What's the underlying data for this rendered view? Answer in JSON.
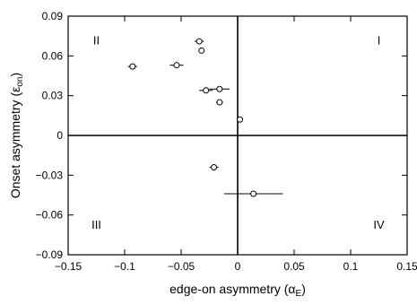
{
  "chart_data": {
    "type": "scatter",
    "xlabel": "edge-on asymmetry  (α",
    "xlabel_sub": "E",
    "ylabel": "Onset asymmetry (ε",
    "ylabel_sub": "on",
    "xlim": [
      -0.15,
      0.15
    ],
    "ylim": [
      -0.09,
      0.09
    ],
    "x_ticks": [
      {
        "value": -0.15,
        "label": "−0.15"
      },
      {
        "value": -0.1,
        "label": "−0.1"
      },
      {
        "value": -0.05,
        "label": "−0.05"
      },
      {
        "value": 0,
        "label": "0"
      },
      {
        "value": 0.05,
        "label": "0.05"
      },
      {
        "value": 0.1,
        "label": "0.1"
      },
      {
        "value": 0.15,
        "label": "0.15"
      }
    ],
    "y_ticks": [
      {
        "value": -0.09,
        "label": "−0.09"
      },
      {
        "value": -0.06,
        "label": "−0.06"
      },
      {
        "value": -0.03,
        "label": "−0.03"
      },
      {
        "value": 0,
        "label": "0"
      },
      {
        "value": 0.03,
        "label": "0.03"
      },
      {
        "value": 0.06,
        "label": "0.06"
      },
      {
        "value": 0.09,
        "label": "0.09"
      }
    ],
    "quadrant_labels": [
      {
        "text": "II",
        "at": [
          -0.125,
          0.072
        ]
      },
      {
        "text": "I",
        "at": [
          0.125,
          0.072
        ]
      },
      {
        "text": "III",
        "at": [
          -0.125,
          -0.067
        ]
      },
      {
        "text": "IV",
        "at": [
          0.125,
          -0.067
        ]
      }
    ],
    "zero_lines": true,
    "grid": false,
    "points": [
      {
        "x": -0.093,
        "y": 0.052,
        "xerr": 0.004
      },
      {
        "x": -0.054,
        "y": 0.053,
        "xerr": 0.006
      },
      {
        "x": -0.034,
        "y": 0.071,
        "xerr": 0.004
      },
      {
        "x": -0.032,
        "y": 0.064,
        "xerr": 0.0
      },
      {
        "x": -0.028,
        "y": 0.034,
        "xerr": 0.006
      },
      {
        "x": -0.016,
        "y": 0.035,
        "xerr": 0.009
      },
      {
        "x": -0.016,
        "y": 0.025,
        "xerr": 0.003
      },
      {
        "x": -0.021,
        "y": -0.024,
        "xerr": 0.004
      },
      {
        "x": 0.002,
        "y": 0.012,
        "xerr": 0.0
      },
      {
        "x": 0.014,
        "y": -0.044,
        "xerr": 0.026
      }
    ]
  }
}
